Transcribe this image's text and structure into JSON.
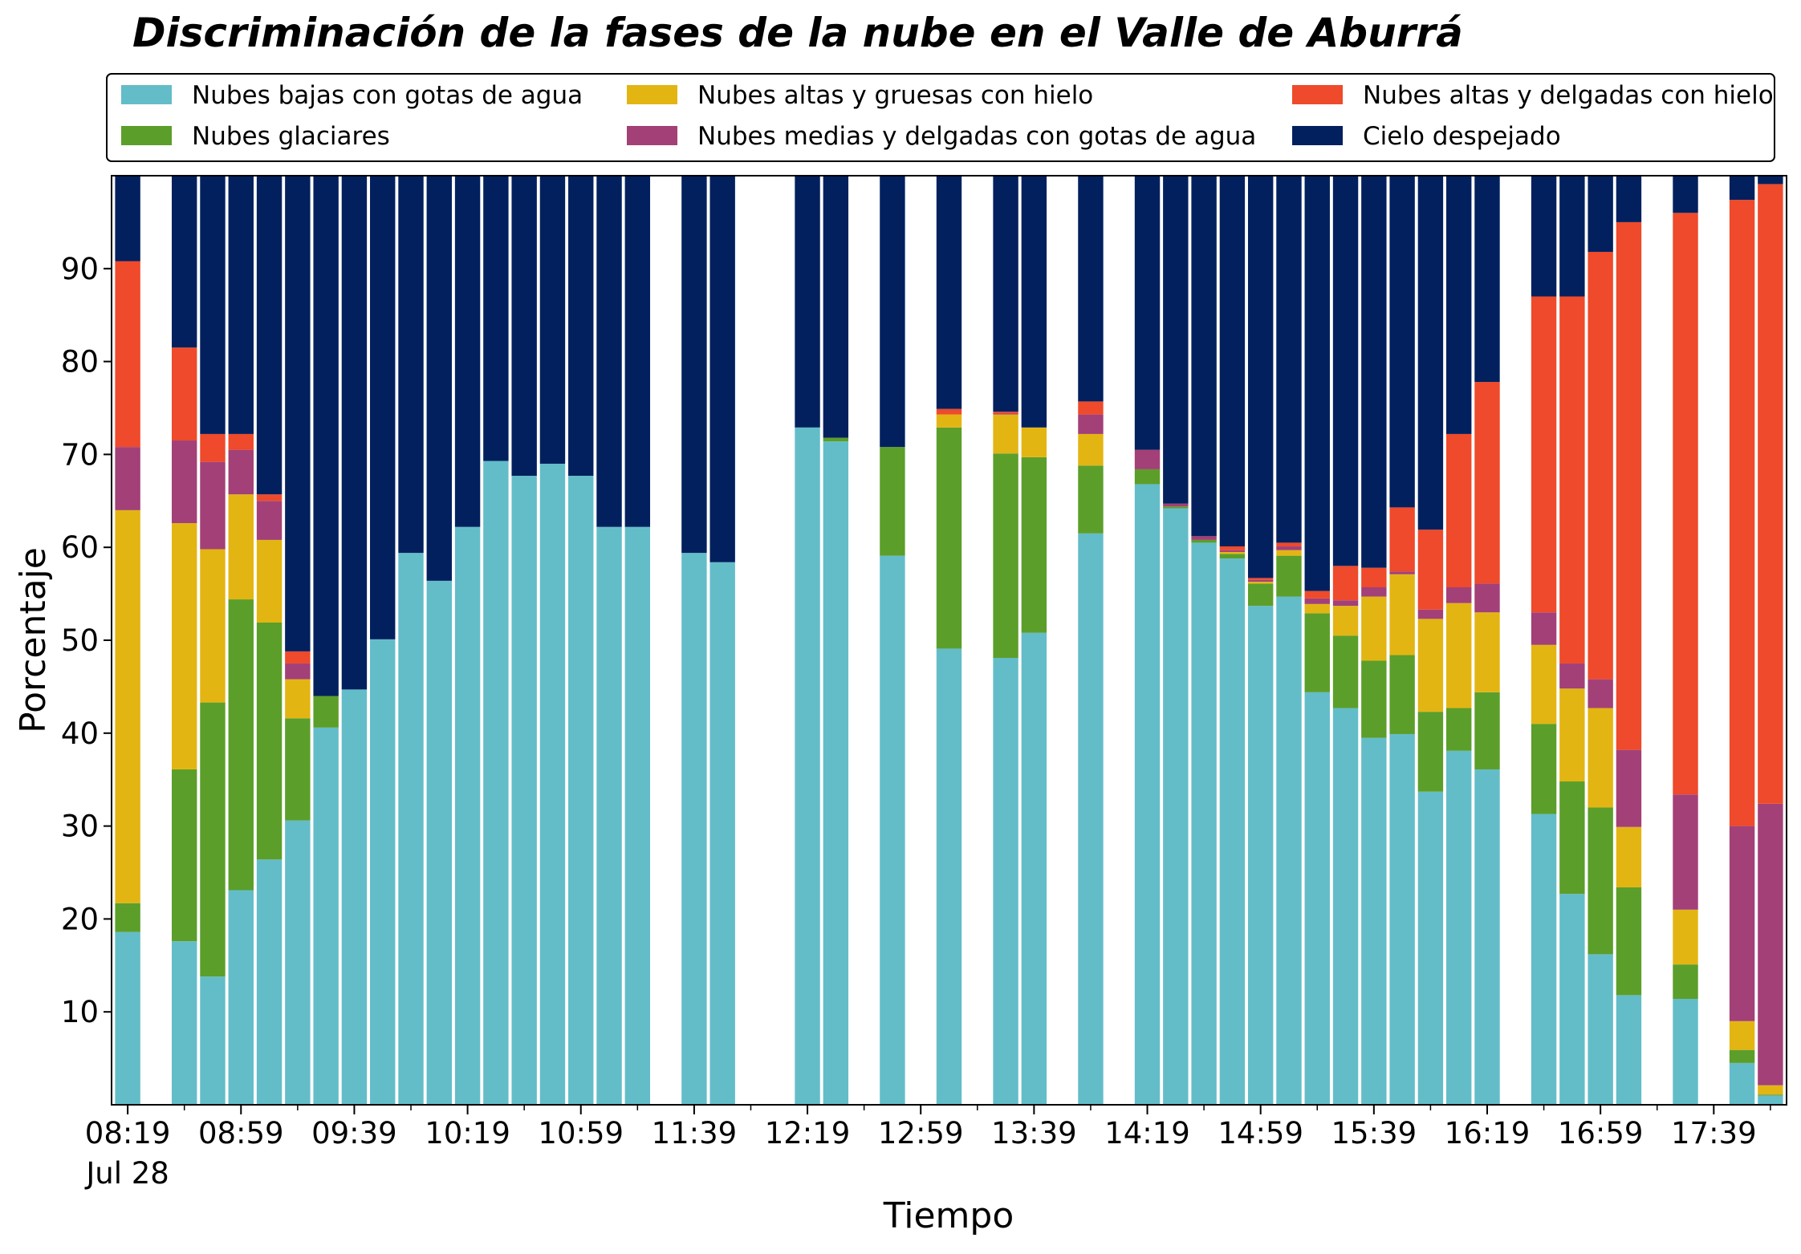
{
  "chart_data": {
    "type": "stacked_bar",
    "title": "Discriminación de la fases de la nube en el Valle de Aburrá",
    "x_label": "Tiempo",
    "y_label": "Porcentaje",
    "date_label": "Jul 28",
    "categories": [
      "08:19",
      null,
      null,
      null,
      "08:59",
      null,
      null,
      null,
      "09:39",
      null,
      null,
      null,
      "10:19",
      null,
      null,
      null,
      "10:59",
      null,
      null,
      null,
      "11:39",
      null,
      null,
      null,
      "12:19",
      null,
      null,
      null,
      "12:59",
      null,
      null,
      null,
      "13:39",
      null,
      null,
      null,
      "14:19",
      null,
      null,
      null,
      "14:59",
      null,
      null,
      null,
      "15:39",
      null,
      null,
      null,
      "16:19",
      null,
      null,
      null,
      "16:59",
      null,
      null,
      null,
      "17:39",
      null,
      null
    ],
    "ylim": [
      0,
      100
    ],
    "yticks": [
      10,
      20,
      30,
      40,
      50,
      60,
      70,
      80,
      90
    ],
    "legend": "top-outside",
    "series": [
      {
        "name": "Nubes bajas con gotas de agua",
        "color": "#63bdc8",
        "values": [
          18.6,
          null,
          17.6,
          13.8,
          23.1,
          26.4,
          30.6,
          40.6,
          44.7,
          50.1,
          59.4,
          56.4,
          62.2,
          69.3,
          67.7,
          69.0,
          67.7,
          62.2,
          62.2,
          null,
          59.4,
          58.4,
          null,
          null,
          72.9,
          71.4,
          null,
          59.1,
          null,
          49.1,
          null,
          48.1,
          50.8,
          null,
          61.5,
          null,
          66.8,
          64.2,
          60.5,
          58.8,
          53.7,
          54.7,
          44.4,
          42.7,
          39.5,
          39.9,
          33.7,
          38.1,
          36.1,
          null,
          31.3,
          22.7,
          16.2,
          11.8,
          null,
          11.4,
          null,
          4.5,
          1.0
        ]
      },
      {
        "name": "Nubes glaciares",
        "color": "#5c9e2a",
        "values": [
          3.1,
          null,
          18.5,
          29.5,
          31.3,
          25.5,
          11.0,
          3.4,
          0,
          0,
          0,
          0,
          0,
          0,
          0,
          0,
          0,
          0,
          0,
          null,
          0,
          0,
          null,
          null,
          0,
          0.4,
          null,
          11.7,
          null,
          23.8,
          null,
          22.0,
          18.9,
          null,
          7.3,
          null,
          1.6,
          0.2,
          0.3,
          0.5,
          2.4,
          4.4,
          8.5,
          7.8,
          8.3,
          8.5,
          8.6,
          4.6,
          8.3,
          null,
          9.7,
          12.1,
          15.8,
          11.6,
          null,
          3.7,
          null,
          1.4,
          0.1
        ]
      },
      {
        "name": "Nubes altas y gruesas con hielo",
        "color": "#e3b513",
        "values": [
          42.3,
          null,
          26.5,
          16.5,
          11.3,
          8.9,
          4.2,
          0,
          0,
          0,
          0,
          0,
          0,
          0,
          0,
          0,
          0,
          0,
          0,
          null,
          0,
          0,
          null,
          null,
          0,
          0,
          null,
          0,
          null,
          1.4,
          null,
          4.2,
          3.2,
          null,
          3.4,
          null,
          0,
          0,
          0,
          0.2,
          0.2,
          0.6,
          1.0,
          3.2,
          6.9,
          8.7,
          10.0,
          11.3,
          8.6,
          null,
          8.5,
          10.0,
          10.7,
          6.5,
          null,
          5.9,
          null,
          3.1,
          1.0
        ]
      },
      {
        "name": "Nubes medias y delgadas con gotas de agua",
        "color": "#a34077",
        "values": [
          6.8,
          null,
          8.9,
          9.4,
          4.8,
          4.2,
          1.7,
          0,
          0,
          0,
          0,
          0,
          0,
          0,
          0,
          0,
          0,
          0,
          0,
          null,
          0,
          0,
          null,
          null,
          0,
          0,
          null,
          0,
          null,
          0,
          null,
          0.1,
          0,
          null,
          2.1,
          null,
          2.1,
          0.3,
          0.4,
          0.2,
          0.2,
          0.4,
          0.6,
          0.6,
          1.0,
          0.3,
          1.0,
          1.7,
          3.1,
          null,
          3.5,
          2.7,
          3.1,
          8.3,
          null,
          12.4,
          null,
          21.0,
          30.3
        ]
      },
      {
        "name": "Nubes altas y delgadas con hielo",
        "color": "#ee4a2b",
        "values": [
          20.0,
          null,
          10.0,
          3.0,
          1.7,
          0.7,
          1.3,
          0,
          0,
          0,
          0,
          0,
          0,
          0,
          0,
          0,
          0,
          0,
          0,
          null,
          0,
          0,
          null,
          null,
          0,
          0,
          null,
          0,
          null,
          0.6,
          null,
          0.2,
          0,
          null,
          1.4,
          null,
          0,
          0,
          0,
          0.4,
          0.2,
          0.4,
          0.8,
          3.7,
          2.1,
          6.9,
          8.6,
          16.5,
          21.7,
          null,
          34.0,
          39.5,
          46.0,
          56.8,
          null,
          62.6,
          null,
          67.4,
          66.7
        ]
      },
      {
        "name": "Cielo despejado",
        "color": "#03205e",
        "values": [
          9.2,
          null,
          18.5,
          27.8,
          27.8,
          34.3,
          51.2,
          56.0,
          55.3,
          49.9,
          40.6,
          43.6,
          37.8,
          30.7,
          32.3,
          31.0,
          32.3,
          37.8,
          37.8,
          null,
          40.6,
          41.6,
          null,
          null,
          27.1,
          28.2,
          null,
          29.2,
          null,
          25.1,
          null,
          25.4,
          27.1,
          null,
          24.3,
          null,
          29.5,
          35.3,
          38.8,
          39.9,
          43.3,
          39.5,
          44.7,
          42.0,
          42.2,
          35.7,
          38.1,
          27.8,
          22.2,
          null,
          13.0,
          13.0,
          8.2,
          5.0,
          null,
          4.0,
          null,
          2.6,
          0.9
        ]
      }
    ]
  }
}
